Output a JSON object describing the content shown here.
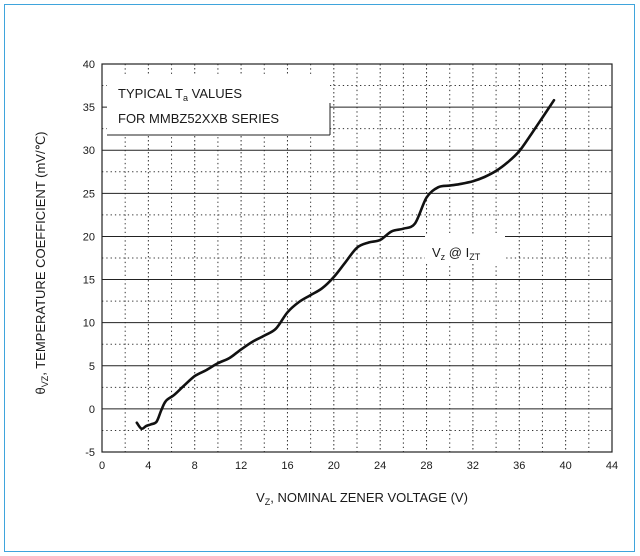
{
  "chart_data": {
    "type": "line",
    "xlabel_main": "V",
    "xlabel_sub": "Z",
    "xlabel_rest": ", NOMINAL ZENER VOLTAGE (V)",
    "ylabel_main": "θ",
    "ylabel_sub": "VZ",
    "ylabel_rest": ", TEMPERATURE COEFFICIENT (mV/℃)",
    "xlim": [
      0,
      44
    ],
    "ylim": [
      -5,
      40
    ],
    "x_ticks": [
      0,
      4,
      8,
      12,
      16,
      20,
      24,
      28,
      32,
      36,
      40,
      44
    ],
    "y_ticks": [
      -5,
      0,
      5,
      10,
      15,
      20,
      25,
      30,
      35,
      40
    ],
    "grid": "dotted minor + solid major",
    "note_line1_a": "TYPICAL T",
    "note_line1_sub": "a",
    "note_line1_b": " VALUES",
    "note_line2": "FOR MMBZ52XXB SERIES",
    "curve_label_a": "V",
    "curve_label_sub1": "z",
    "curve_label_b": " @ I",
    "curve_label_sub2": "ZT",
    "series": [
      {
        "points": [
          [
            3.0,
            -1.6
          ],
          [
            3.4,
            -2.3
          ],
          [
            3.8,
            -2.0
          ],
          [
            4.2,
            -1.8
          ],
          [
            4.7,
            -1.5
          ],
          [
            5.1,
            -0.2
          ],
          [
            5.5,
            0.9
          ],
          [
            6.2,
            1.6
          ],
          [
            7.0,
            2.6
          ],
          [
            8.0,
            3.8
          ],
          [
            9.0,
            4.5
          ],
          [
            10.0,
            5.3
          ],
          [
            11.0,
            5.9
          ],
          [
            12.0,
            6.9
          ],
          [
            13.0,
            7.8
          ],
          [
            14.0,
            8.5
          ],
          [
            15.0,
            9.3
          ],
          [
            16.0,
            11.2
          ],
          [
            17.0,
            12.4
          ],
          [
            18.0,
            13.2
          ],
          [
            19.0,
            14.0
          ],
          [
            20.0,
            15.3
          ],
          [
            21.0,
            17.0
          ],
          [
            22.0,
            18.7
          ],
          [
            23.0,
            19.3
          ],
          [
            24.0,
            19.6
          ],
          [
            25.0,
            20.6
          ],
          [
            26.0,
            20.9
          ],
          [
            27.0,
            21.5
          ],
          [
            28.0,
            24.5
          ],
          [
            29.0,
            25.7
          ],
          [
            30.0,
            25.9
          ],
          [
            31.0,
            26.1
          ],
          [
            32.0,
            26.4
          ],
          [
            33.0,
            26.9
          ],
          [
            34.0,
            27.6
          ],
          [
            35.0,
            28.6
          ],
          [
            36.0,
            29.9
          ],
          [
            37.0,
            31.8
          ],
          [
            38.0,
            33.8
          ],
          [
            39.0,
            35.8
          ]
        ]
      }
    ]
  }
}
